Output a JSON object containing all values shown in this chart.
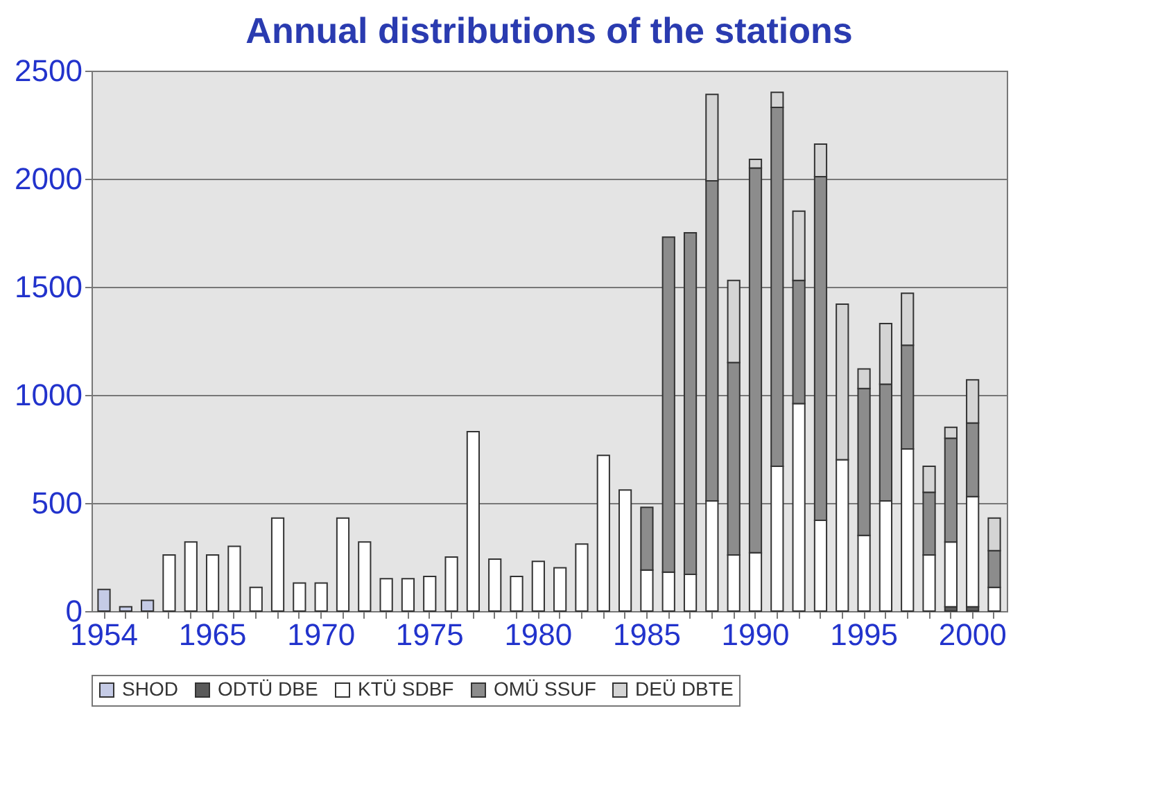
{
  "chart_data": {
    "type": "bar",
    "title": "Annual distributions of the stations",
    "categories": [
      "1954",
      null,
      null,
      null,
      null,
      "1965",
      null,
      null,
      null,
      null,
      "1970",
      null,
      null,
      null,
      null,
      "1975",
      null,
      null,
      null,
      null,
      "1980",
      null,
      null,
      null,
      null,
      "1985",
      null,
      null,
      null,
      null,
      "1990",
      null,
      null,
      null,
      null,
      "1995",
      null,
      null,
      null,
      null,
      "2000",
      null
    ],
    "series": [
      {
        "name": "SHOD",
        "color": "#c5cbe6",
        "values": [
          100,
          20,
          50,
          null,
          null,
          null,
          null,
          null,
          null,
          null,
          null,
          null,
          null,
          null,
          null,
          null,
          null,
          null,
          null,
          null,
          null,
          null,
          null,
          null,
          null,
          null,
          null,
          null,
          null,
          null,
          null,
          null,
          null,
          null,
          null,
          null,
          null,
          null,
          null,
          null,
          null,
          null
        ]
      },
      {
        "name": "ODTÜ DBE",
        "color": "#5a5a5a",
        "values": [
          null,
          null,
          null,
          null,
          null,
          null,
          null,
          null,
          null,
          null,
          null,
          null,
          null,
          null,
          null,
          null,
          null,
          null,
          null,
          null,
          null,
          null,
          null,
          null,
          null,
          null,
          null,
          null,
          null,
          null,
          null,
          null,
          null,
          null,
          null,
          null,
          null,
          null,
          null,
          20,
          20,
          null
        ]
      },
      {
        "name": "KTÜ SDBF",
        "color": "#ffffff",
        "values": [
          null,
          null,
          null,
          260,
          320,
          260,
          300,
          110,
          430,
          130,
          130,
          430,
          320,
          150,
          150,
          160,
          250,
          830,
          240,
          160,
          230,
          200,
          310,
          720,
          560,
          190,
          180,
          170,
          510,
          260,
          270,
          670,
          960,
          420,
          700,
          350,
          510,
          750,
          260,
          300,
          510,
          110
        ]
      },
      {
        "name": "OMÜ SSUF",
        "color": "#8c8c8c",
        "values": [
          null,
          null,
          null,
          null,
          null,
          null,
          null,
          null,
          null,
          null,
          null,
          null,
          null,
          null,
          null,
          null,
          null,
          null,
          null,
          null,
          null,
          null,
          null,
          null,
          null,
          290,
          1550,
          1580,
          1480,
          890,
          1780,
          1660,
          570,
          1590,
          null,
          680,
          540,
          480,
          290,
          480,
          340,
          170
        ]
      },
      {
        "name": "DEÜ DBTE",
        "color": "#d4d4d4",
        "values": [
          null,
          null,
          null,
          null,
          null,
          null,
          null,
          null,
          null,
          null,
          null,
          null,
          null,
          null,
          null,
          null,
          null,
          null,
          null,
          null,
          null,
          null,
          null,
          null,
          null,
          null,
          null,
          null,
          400,
          380,
          40,
          70,
          320,
          150,
          720,
          90,
          280,
          240,
          120,
          50,
          200,
          150
        ]
      }
    ],
    "stacked": true,
    "ylim": [
      0,
      2500
    ],
    "yticks": [
      0,
      500,
      1000,
      1500,
      2000,
      2500
    ],
    "grid": "y",
    "legend": "bottom"
  }
}
